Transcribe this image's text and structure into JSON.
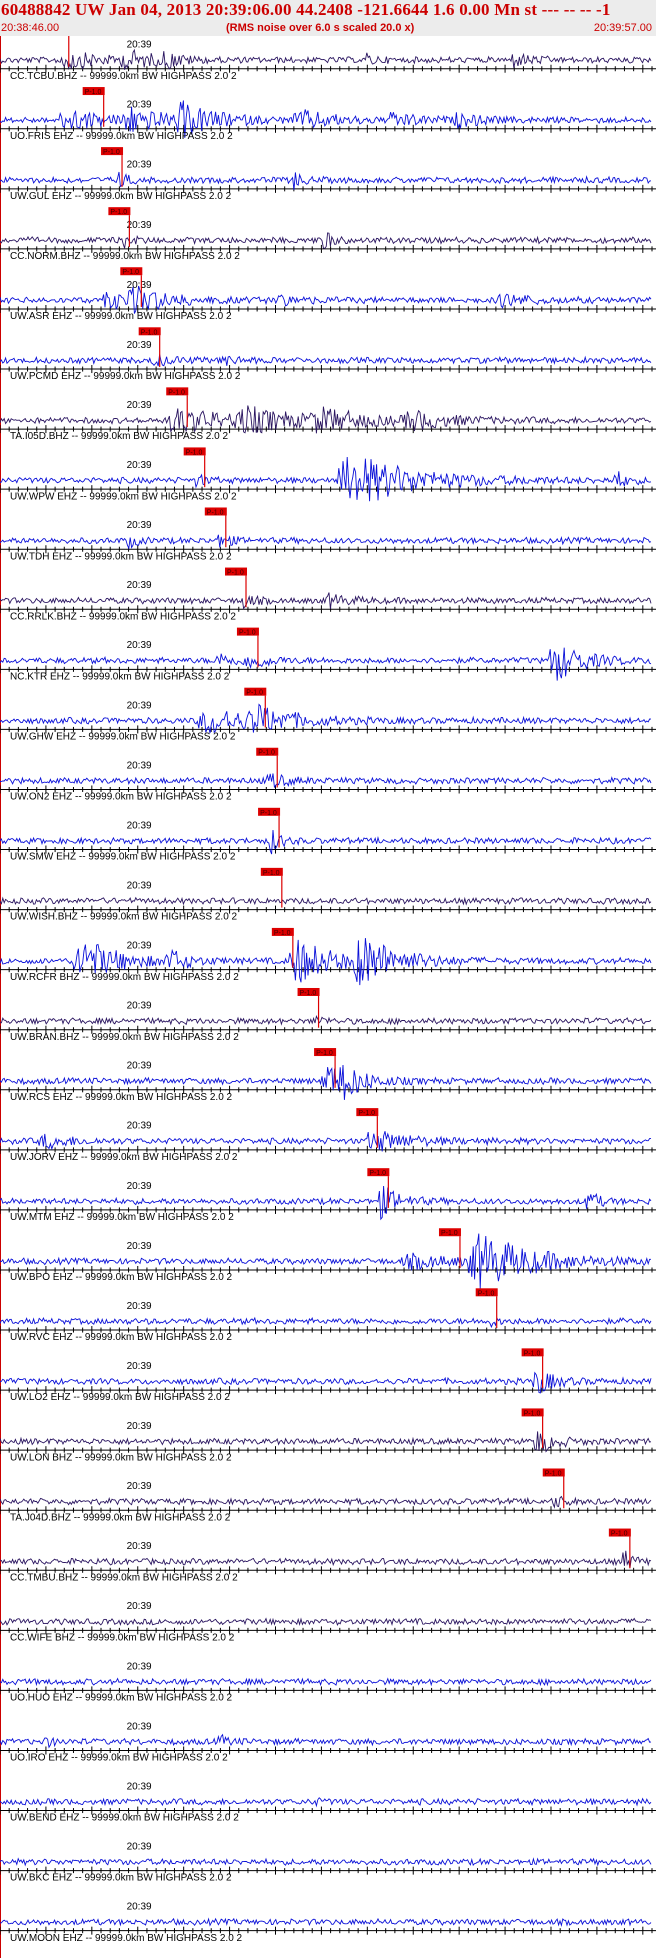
{
  "header": {
    "title": "60488842 UW Jan 04, 2013 20:39:06.00   44.2408 -121.6644  1.6 0.00 Mn st --- -- --  -1",
    "start_time": "20:38:46.00",
    "subtitle": "(RMS noise over 6.0 s scaled 20.0 x)",
    "end_time": "20:39:57.00"
  },
  "chart_data": {
    "type": "line",
    "title": "60488842 UW Jan 04, 2013 20:39:06.00   44.2408 -121.6644  1.6 0.00 Mn st --- -- --  -1",
    "x_unit": "seconds after 20:38:46.00",
    "xlim": [
      0,
      71
    ],
    "minute_marker_label": "20:39",
    "minute_marker_x": 14,
    "pick_label": "P-1.0",
    "colors": {
      "trace_dark": "#2a1560",
      "trace_blue": "#0a10d8",
      "pick": "#dd0000",
      "axis": "#000000"
    },
    "traces": [
      {
        "label": "CC.TCBU.BHZ -- 99999.0km BW  HIGHPASS  2.0  2",
        "color": "dark",
        "pick_x": 6.4,
        "events": [
          [
            7.2,
            4,
            9
          ],
          [
            14,
            3,
            8
          ],
          [
            18,
            2,
            6
          ],
          [
            40,
            1,
            5
          ],
          [
            56,
            2,
            6
          ]
        ]
      },
      {
        "label": "UO.FRIS EHZ -- 99999.0km BW  HIGHPASS  2.0  2",
        "color": "blue",
        "pick_x": 10.2,
        "events": [
          [
            7.5,
            4,
            10
          ],
          [
            14,
            4,
            12
          ],
          [
            20,
            4,
            14
          ],
          [
            33,
            4,
            8
          ],
          [
            43,
            3,
            6
          ],
          [
            50,
            3,
            5
          ]
        ]
      },
      {
        "label": "UW.GUL EHZ -- 99999.0km BW  HIGHPASS  2.0  2",
        "color": "blue",
        "pick_x": 12.2,
        "events": [
          [
            13,
            1,
            7
          ],
          [
            32,
            1,
            8
          ]
        ]
      },
      {
        "label": "CC.NORM.BHZ -- 99999.0km BW  HIGHPASS  2.0  2",
        "color": "dark",
        "pick_x": 13.0,
        "events": [
          [
            13.5,
            1,
            6
          ],
          [
            35,
            1,
            12
          ]
        ]
      },
      {
        "label": "UW.ASR EHZ -- 99999.0km BW  HIGHPASS  2.0  2",
        "color": "blue",
        "pick_x": 14.3,
        "events": [
          [
            12,
            3,
            8
          ],
          [
            15,
            4,
            10
          ],
          [
            30,
            3,
            4
          ],
          [
            55,
            3,
            6
          ]
        ]
      },
      {
        "label": "UW.PCMD EHZ -- 99999.0km BW  HIGHPASS  2.0  2",
        "color": "blue",
        "pick_x": 16.3,
        "events": [
          [
            17,
            2,
            5
          ],
          [
            24,
            2,
            4
          ]
        ]
      },
      {
        "label": "TA.I05D.BHZ -- 99999.0km BW  HIGHPASS  2.0  2",
        "color": "dark",
        "pick_x": 19.3,
        "events": [
          [
            19.5,
            6,
            12
          ],
          [
            27,
            6,
            10
          ],
          [
            35,
            5,
            9
          ],
          [
            45,
            4,
            8
          ]
        ]
      },
      {
        "label": "UW.WPW EHZ -- 99999.0km BW  HIGHPASS  2.0  2",
        "color": "blue",
        "pick_x": 21.2,
        "events": [
          [
            21.5,
            1,
            6
          ],
          [
            38.5,
            7,
            26
          ],
          [
            67,
            1,
            10
          ]
        ]
      },
      {
        "label": "UW.TDH EHZ -- 99999.0km BW  HIGHPASS  2.0  2",
        "color": "blue",
        "pick_x": 23.5,
        "events": [
          [
            24,
            1,
            8
          ],
          [
            14,
            1,
            6
          ]
        ]
      },
      {
        "label": "CC.RRLK.BHZ -- 99999.0km BW  HIGHPASS  2.0  2",
        "color": "dark",
        "pick_x": 25.7,
        "events": [
          [
            26.5,
            1,
            8
          ],
          [
            36,
            2,
            6
          ]
        ]
      },
      {
        "label": "NC.KTR EHZ -- 99999.0km BW  HIGHPASS  2.0  2",
        "color": "blue",
        "pick_x": 27.0,
        "events": [
          [
            27.3,
            2,
            7
          ],
          [
            60.5,
            3,
            20
          ],
          [
            24,
            2,
            6
          ]
        ]
      },
      {
        "label": "UW.GHW EHZ -- 99999.0km BW  HIGHPASS  2.0  2",
        "color": "blue",
        "pick_x": 27.8,
        "events": [
          [
            23,
            6,
            12
          ],
          [
            28,
            4,
            10
          ]
        ]
      },
      {
        "label": "UW.ON2 EHZ -- 99999.0km BW  HIGHPASS  2.0  2",
        "color": "blue",
        "pick_x": 29.1,
        "events": [
          [
            29.5,
            2,
            6
          ]
        ]
      },
      {
        "label": "UW.SMW EHZ -- 99999.0km BW  HIGHPASS  2.0  2",
        "color": "blue",
        "pick_x": 29.3,
        "events": [
          [
            29.6,
            1,
            12
          ]
        ]
      },
      {
        "label": "UW.WISH.BHZ -- 99999.0km BW  HIGHPASS  2.0  2",
        "color": "dark",
        "pick_x": 29.6,
        "events": []
      },
      {
        "label": "UW.RCFR BHZ -- 99999.0km BW  HIGHPASS  2.0  2",
        "color": "blue",
        "pick_x": 30.8,
        "events": [
          [
            9,
            4,
            22
          ],
          [
            18.5,
            2,
            10
          ],
          [
            32.5,
            4,
            22
          ],
          [
            39.5,
            4,
            24
          ]
        ]
      },
      {
        "label": "UW.BRAN.BHZ -- 99999.0km BW  HIGHPASS  2.0  2",
        "color": "dark",
        "pick_x": 33.6,
        "events": [
          [
            34.5,
            1,
            4
          ]
        ]
      },
      {
        "label": "UW.RCS EHZ -- 99999.0km BW  HIGHPASS  2.0  2",
        "color": "blue",
        "pick_x": 35.4,
        "events": [
          [
            35.8,
            3,
            16
          ],
          [
            37.5,
            2,
            10
          ]
        ]
      },
      {
        "label": "UW.JORV EHZ -- 99999.0km BW  HIGHPASS  2.0  2",
        "color": "blue",
        "pick_x": 40.0,
        "events": [
          [
            5,
            3,
            6
          ],
          [
            40.8,
            4,
            10
          ]
        ]
      },
      {
        "label": "UW.MTM EHZ -- 99999.0km BW  HIGHPASS  2.0  2",
        "color": "blue",
        "pick_x": 41.2,
        "events": [
          [
            41.5,
            2,
            16
          ],
          [
            64,
            1,
            14
          ]
        ]
      },
      {
        "label": "UW.BPO EHZ -- 99999.0km BW  HIGHPASS  2.0  2",
        "color": "blue",
        "pick_x": 49.0,
        "events": [
          [
            52.5,
            6,
            26
          ],
          [
            45,
            5,
            6
          ]
        ]
      },
      {
        "label": "UW.RVC EHZ -- 99999.0km BW  HIGHPASS  2.0  2",
        "color": "blue",
        "pick_x": 53.0,
        "events": [
          [
            53,
            1,
            6
          ]
        ]
      },
      {
        "label": "UW.LO2 EHZ -- 99999.0km BW  HIGHPASS  2.0  2",
        "color": "blue",
        "pick_x": 58.0,
        "events": [
          [
            58.5,
            2,
            12
          ]
        ]
      },
      {
        "label": "UW.LON BHZ -- 99999.0km BW  HIGHPASS  2.0  2",
        "color": "dark",
        "pick_x": 58.0,
        "events": [
          [
            58.5,
            2,
            12
          ]
        ]
      },
      {
        "label": "TA.J04D.BHZ -- 99999.0km BW  HIGHPASS  2.0  2",
        "color": "dark",
        "pick_x": 60.3,
        "events": [
          [
            60.5,
            1,
            6
          ]
        ]
      },
      {
        "label": "CC.TMBU.BHZ -- 99999.0km BW  HIGHPASS  2.0  2",
        "color": "dark",
        "pick_x": 67.5,
        "events": [
          [
            68,
            1,
            10
          ]
        ]
      },
      {
        "label": "CC.WIFE BHZ -- 99999.0km BW  HIGHPASS  2.0  2",
        "color": "dark",
        "pick_x": null,
        "events": []
      },
      {
        "label": "UO.HUO EHZ -- 99999.0km BW  HIGHPASS  2.0  2",
        "color": "blue",
        "pick_x": null,
        "events": []
      },
      {
        "label": "UO.IRO EHZ -- 99999.0km BW  HIGHPASS  2.0  2",
        "color": "blue",
        "pick_x": null,
        "events": [
          [
            5,
            1,
            4
          ],
          [
            24,
            1,
            5
          ]
        ]
      },
      {
        "label": "UW.BEND EHZ -- 99999.0km BW  HIGHPASS  2.0  2",
        "color": "blue",
        "pick_x": null,
        "events": [
          [
            34,
            1,
            3
          ]
        ]
      },
      {
        "label": "UW.BKC EHZ -- 99999.0km BW  HIGHPASS  2.0  2",
        "color": "blue",
        "pick_x": null,
        "events": []
      },
      {
        "label": "UW.MOON EHZ -- 99999.0km BW  HIGHPASS  2.0  2",
        "color": "blue",
        "pick_x": null,
        "events": []
      }
    ]
  }
}
